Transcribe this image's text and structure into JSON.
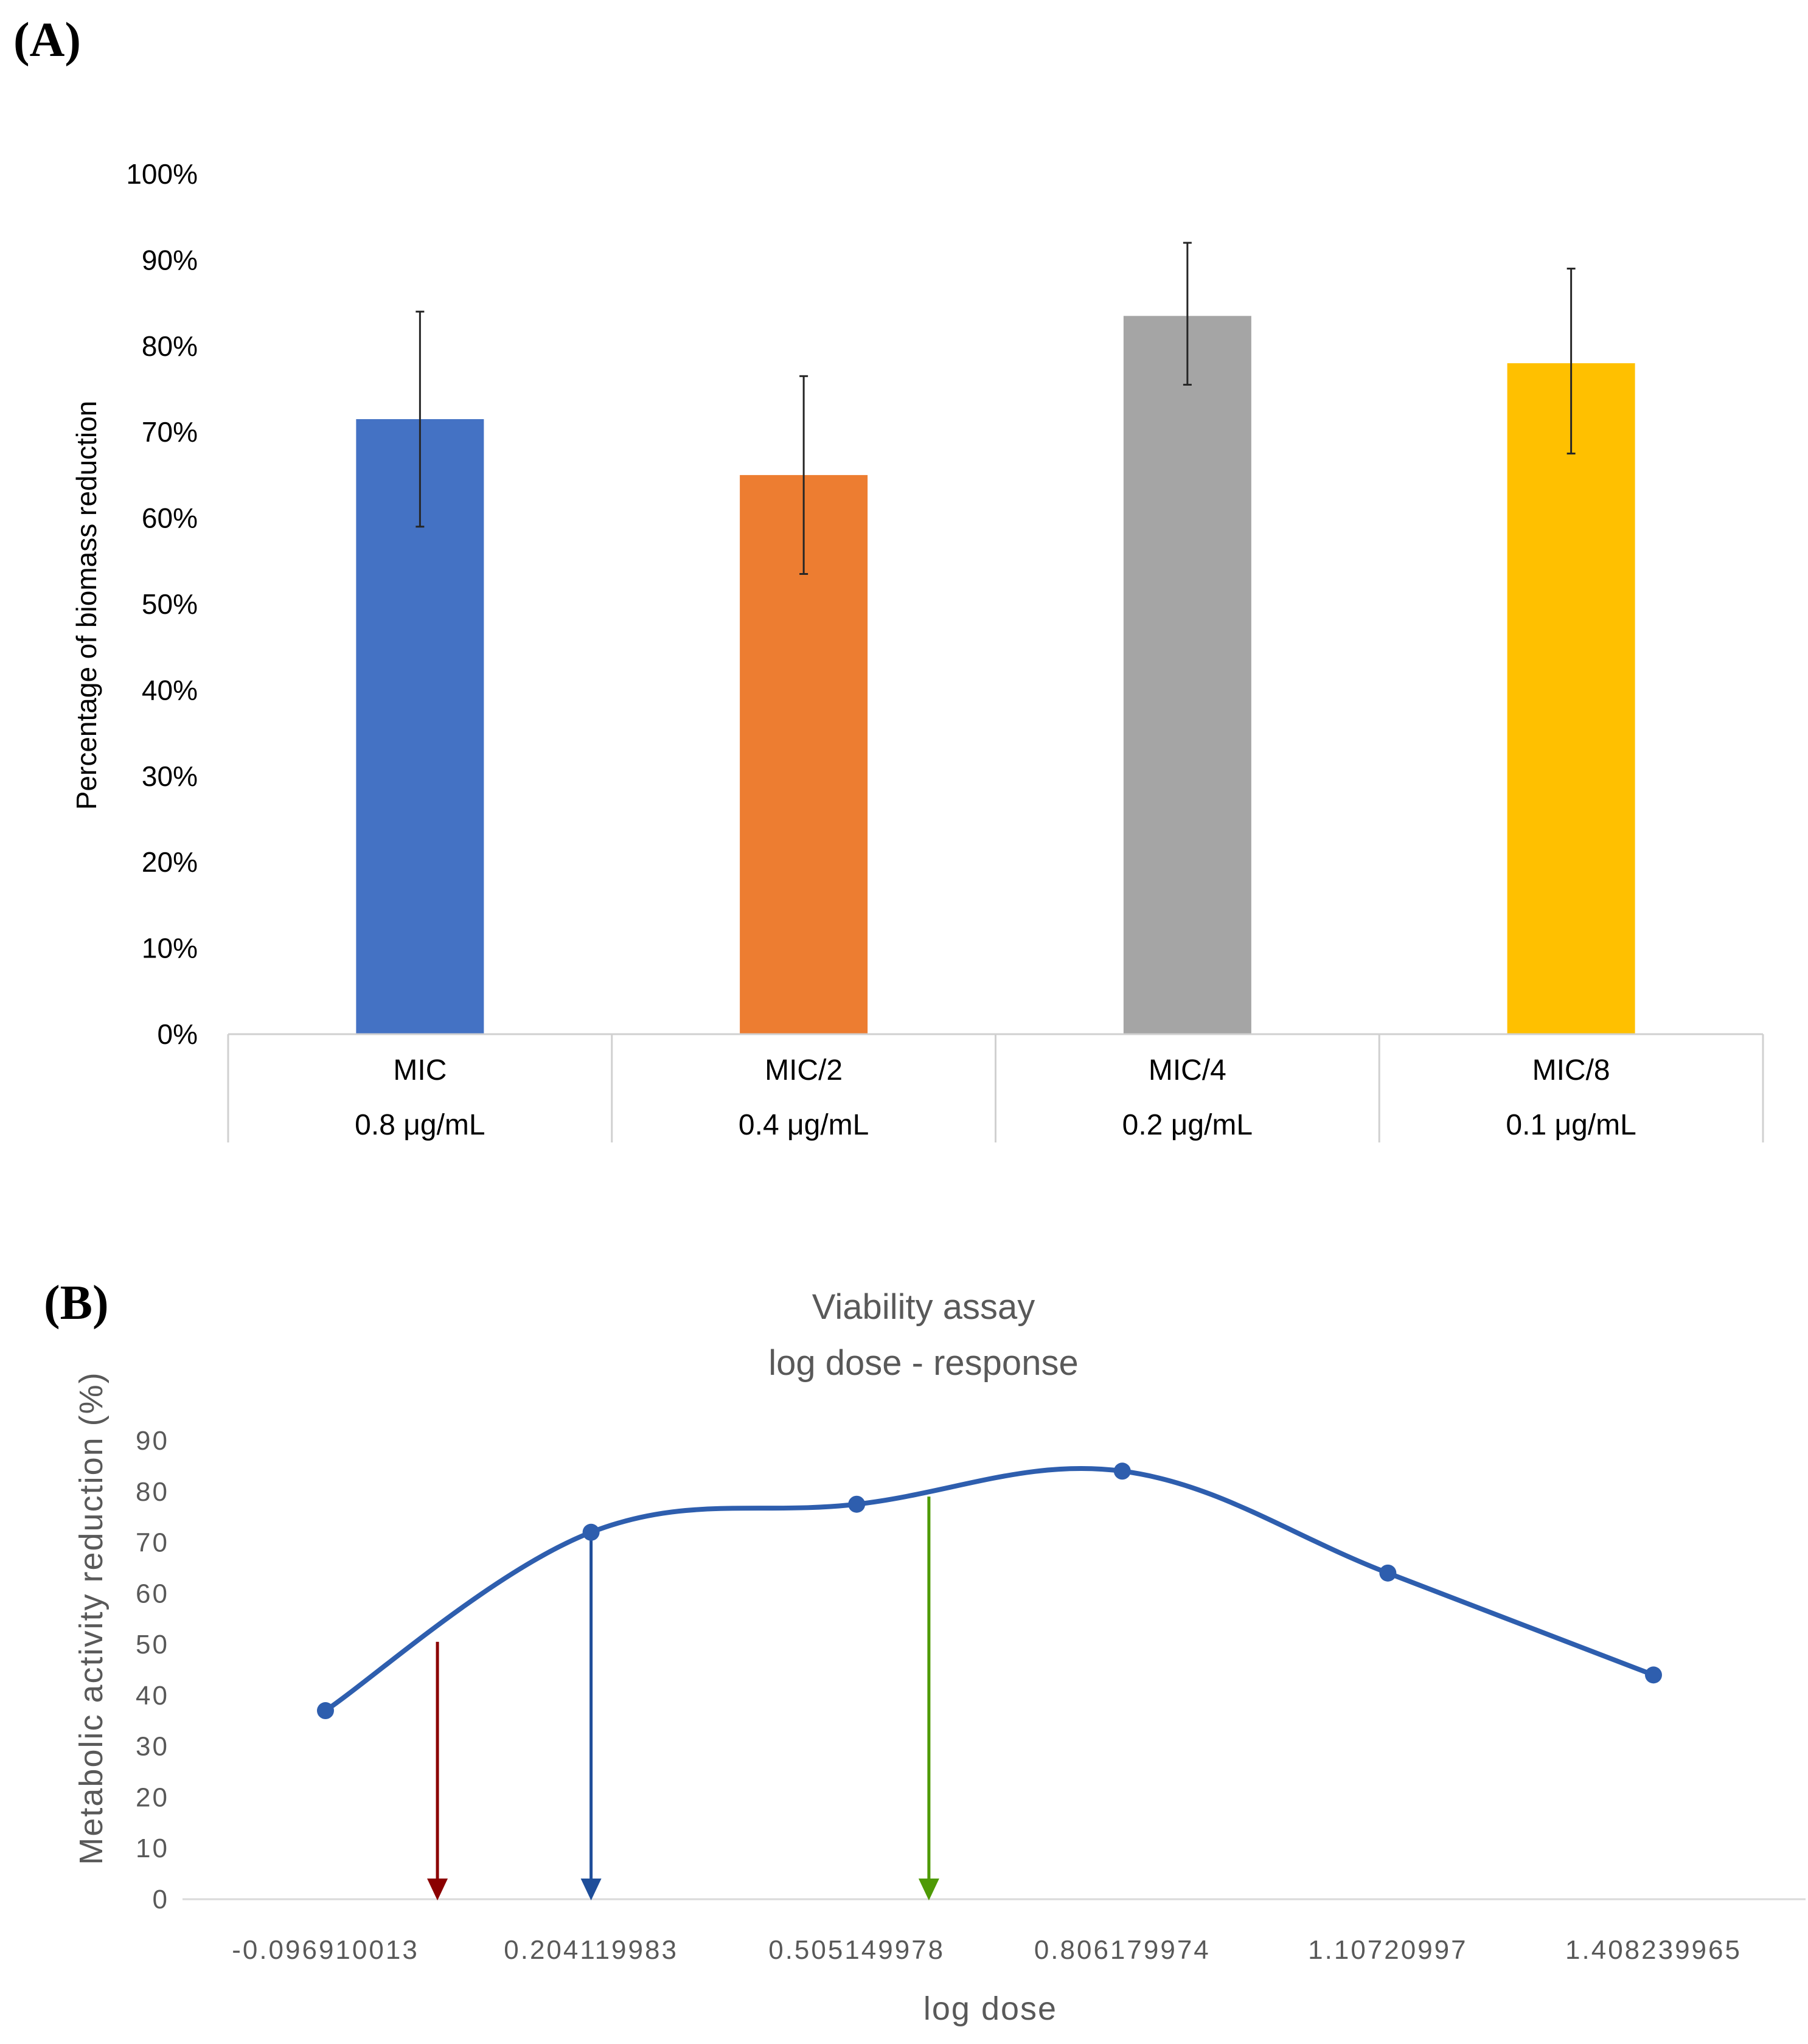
{
  "chart_data": [
    {
      "panel_label": "(A)",
      "type": "bar",
      "title": "",
      "xlabel": "",
      "ylabel": "Percentage of biomass reduction",
      "ylim": [
        0,
        100
      ],
      "yticks": [
        "0%",
        "10%",
        "20%",
        "30%",
        "40%",
        "50%",
        "60%",
        "70%",
        "80%",
        "90%",
        "100%"
      ],
      "categories": [
        "MIC",
        "MIC/2",
        "MIC/4",
        "MIC/8"
      ],
      "sub_categories": [
        "0.8 μg/mL",
        "0.4 μg/mL",
        "0.2 μg/mL",
        "0.1 μg/mL"
      ],
      "values": [
        71.5,
        65,
        83.5,
        78
      ],
      "error_low": [
        59,
        53.5,
        75.5,
        67.5
      ],
      "error_high": [
        84,
        76.5,
        92,
        89
      ],
      "colors": [
        "#4472C4",
        "#ED7D31",
        "#A5A5A5",
        "#FFC000"
      ],
      "grid": false,
      "legend": "none"
    },
    {
      "panel_label": "(B)",
      "type": "line",
      "title": [
        "Viability assay",
        "log dose - response"
      ],
      "xlabel": "log dose",
      "ylabel": "Metabolic activity reduction  (%)",
      "ylim": [
        0,
        90
      ],
      "yticks": [
        "0",
        "10",
        "20",
        "30",
        "40",
        "50",
        "60",
        "70",
        "80",
        "90"
      ],
      "x": [
        -0.096910013,
        0.204119983,
        0.505149978,
        0.806179974,
        1.10720997,
        1.408239965
      ],
      "xtick_labels": [
        "-0.096910013",
        "0.204119983",
        "0.505149978",
        "0.806179974",
        "1.10720997",
        "1.408239965"
      ],
      "series": [
        {
          "name": "Metabolic activity reduction",
          "values": [
            37,
            72,
            77.5,
            84,
            64,
            44
          ],
          "color": "#2E5EAE",
          "smooth": true
        }
      ],
      "annotations": [
        {
          "type": "arrow",
          "x": 0.03,
          "from_y": 50.5,
          "to_y": 0,
          "color": "#8B0000"
        },
        {
          "type": "arrow",
          "x": 0.204119983,
          "from_y": 72,
          "to_y": 0,
          "color": "#1F4E9A"
        },
        {
          "type": "arrow",
          "x": 0.587,
          "from_y": 79,
          "to_y": 0,
          "color": "#4E9A06"
        }
      ],
      "grid": false,
      "legend": "none"
    }
  ]
}
